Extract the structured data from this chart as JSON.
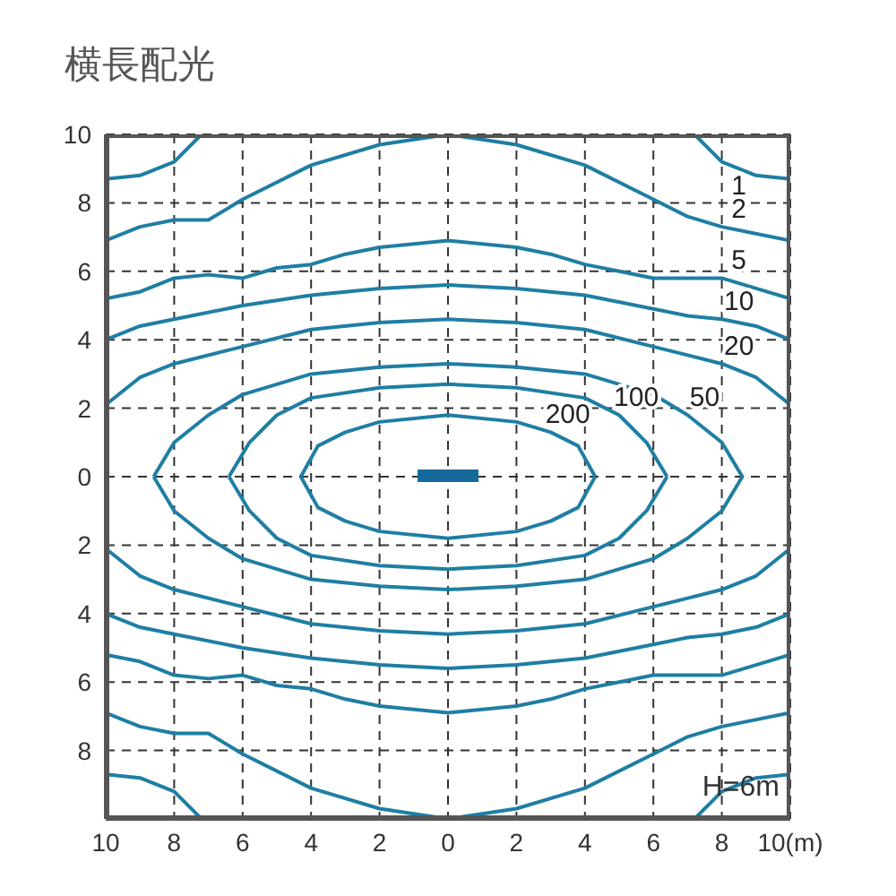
{
  "chart_data": {
    "type": "line",
    "title": "横長配光",
    "annotations": [
      "H=6m"
    ],
    "xlim": [
      -10,
      10
    ],
    "ylim": [
      -10,
      10
    ],
    "xticks": [
      {
        "value": -10,
        "label": "10"
      },
      {
        "value": -8,
        "label": "8"
      },
      {
        "value": -6,
        "label": "6"
      },
      {
        "value": -4,
        "label": "4"
      },
      {
        "value": -2,
        "label": "2"
      },
      0,
      2,
      4,
      6,
      8,
      {
        "value": 10,
        "label": "10(m)"
      }
    ],
    "yticks": [
      {
        "value": -10,
        "label": null
      },
      {
        "value": -8,
        "label": "8"
      },
      {
        "value": -6,
        "label": "6"
      },
      {
        "value": -4,
        "label": "4"
      },
      {
        "value": -2,
        "label": "2"
      },
      0,
      2,
      4,
      6,
      8,
      10
    ],
    "grid": true,
    "marker": "none",
    "line_style": "solid",
    "series": [
      {
        "name": "1",
        "color": "#1f7ea3",
        "x": [
          -10,
          -9,
          -8,
          -7.2,
          null,
          7.2,
          8,
          9,
          10,
          null,
          -10,
          -9,
          -8,
          -7.2,
          null,
          7.2,
          8,
          9,
          10
        ],
        "values": [
          8.7,
          8.8,
          9.2,
          10,
          null,
          10,
          9.2,
          8.8,
          8.7,
          null,
          -8.7,
          -8.8,
          -9.2,
          -10,
          null,
          -10,
          -9.2,
          -8.8,
          -8.7
        ]
      },
      {
        "name": "2",
        "color": "#1f7ea3",
        "x": [
          -10,
          -9,
          -8,
          -7,
          -6,
          -4,
          -2,
          0,
          2,
          4,
          6,
          7,
          8,
          10,
          null,
          -10,
          -9,
          -8,
          -7,
          -6,
          -4,
          -2,
          0,
          2,
          4,
          6,
          7,
          8,
          10
        ],
        "values": [
          6.9,
          7.3,
          7.5,
          7.5,
          8.1,
          9.1,
          9.7,
          10,
          9.7,
          9.1,
          8.1,
          7.6,
          7.3,
          6.9,
          null,
          -6.9,
          -7.3,
          -7.5,
          -7.5,
          -8.1,
          -9.1,
          -9.7,
          -10,
          -9.7,
          -9.1,
          -8.1,
          -7.6,
          -7.3,
          -6.9
        ]
      },
      {
        "name": "5",
        "color": "#1f7ea3",
        "x": [
          -10,
          -9,
          -8,
          -7,
          -6,
          -5,
          -4,
          -3,
          -2,
          0,
          2,
          3,
          4,
          5,
          6,
          7,
          8,
          9,
          10,
          null,
          -10,
          -9,
          -8,
          -7,
          -6,
          -5,
          -4,
          -3,
          -2,
          0,
          2,
          3,
          4,
          5,
          6,
          7,
          8,
          9,
          10
        ],
        "values": [
          5.2,
          5.4,
          5.8,
          5.9,
          5.8,
          6.1,
          6.2,
          6.5,
          6.7,
          6.9,
          6.7,
          6.5,
          6.2,
          6,
          5.8,
          5.8,
          5.8,
          5.5,
          5.2,
          null,
          -5.2,
          -5.4,
          -5.8,
          -5.9,
          -5.8,
          -6.1,
          -6.2,
          -6.5,
          -6.7,
          -6.9,
          -6.7,
          -6.5,
          -6.2,
          -6,
          -5.8,
          -5.8,
          -5.8,
          -5.5,
          -5.2
        ]
      },
      {
        "name": "10",
        "color": "#1f7ea3",
        "x": [
          -10,
          -9,
          -8,
          -6,
          -4,
          -2,
          0,
          2,
          4,
          6,
          7,
          8,
          9,
          10,
          null,
          -10,
          -9,
          -8,
          -6,
          -4,
          -2,
          0,
          2,
          4,
          6,
          7,
          8,
          9,
          10
        ],
        "values": [
          4,
          4.4,
          4.6,
          5,
          5.3,
          5.5,
          5.6,
          5.5,
          5.3,
          4.9,
          4.7,
          4.6,
          4.4,
          4,
          null,
          -4,
          -4.4,
          -4.6,
          -5,
          -5.3,
          -5.5,
          -5.6,
          -5.5,
          -5.3,
          -4.9,
          -4.7,
          -4.6,
          -4.4,
          -4
        ]
      },
      {
        "name": "20",
        "color": "#1f7ea3",
        "x": [
          -10,
          -9,
          -8,
          -6,
          -4,
          -2,
          0,
          2,
          4,
          6,
          8,
          9,
          10,
          null,
          -10,
          -9,
          -8,
          -6,
          -4,
          -2,
          0,
          2,
          4,
          6,
          8,
          9,
          10
        ],
        "values": [
          2.1,
          2.9,
          3.3,
          3.8,
          4.3,
          4.5,
          4.6,
          4.5,
          4.3,
          3.8,
          3.3,
          2.9,
          2.1,
          null,
          -2.1,
          -2.9,
          -3.3,
          -3.8,
          -4.3,
          -4.5,
          -4.6,
          -4.5,
          -4.3,
          -3.8,
          -3.3,
          -2.9,
          -2.1
        ]
      },
      {
        "name": "50",
        "color": "#1f7ea3",
        "x": [
          -8.6,
          -8,
          -7,
          -6,
          -4,
          -2,
          0,
          2,
          4,
          6,
          7,
          8,
          8.6,
          null,
          -8.6,
          -8,
          -7,
          -6,
          -4,
          -2,
          0,
          2,
          4,
          6,
          7,
          8,
          8.6
        ],
        "values": [
          0,
          1,
          1.8,
          2.4,
          3,
          3.2,
          3.3,
          3.2,
          3,
          2.4,
          1.8,
          1,
          0,
          null,
          0,
          -1,
          -1.8,
          -2.4,
          -3,
          -3.2,
          -3.3,
          -3.2,
          -3,
          -2.4,
          -1.8,
          -1,
          0
        ]
      },
      {
        "name": "100",
        "color": "#1f7ea3",
        "x": [
          -6.4,
          -5.8,
          -5,
          -4,
          -2,
          0,
          2,
          4,
          5,
          5.8,
          6.4,
          null,
          -6.4,
          -5.8,
          -5,
          -4,
          -2,
          0,
          2,
          4,
          5,
          5.8,
          6.4
        ],
        "values": [
          0,
          1,
          1.8,
          2.3,
          2.6,
          2.7,
          2.6,
          2.3,
          1.8,
          1,
          0,
          null,
          0,
          -1,
          -1.8,
          -2.3,
          -2.6,
          -2.7,
          -2.6,
          -2.3,
          -1.8,
          -1,
          0
        ]
      },
      {
        "name": "200",
        "color": "#1f7ea3",
        "x": [
          -4.3,
          -3.8,
          -3,
          -2,
          0,
          2,
          3,
          3.8,
          4.3,
          null,
          -4.3,
          -3.8,
          -3,
          -2,
          0,
          2,
          3,
          3.8,
          4.3
        ],
        "values": [
          0,
          0.9,
          1.3,
          1.6,
          1.8,
          1.6,
          1.3,
          0.9,
          0,
          null,
          0,
          -0.9,
          -1.3,
          -1.6,
          -1.8,
          -1.6,
          -1.3,
          -0.9,
          0
        ]
      }
    ]
  }
}
